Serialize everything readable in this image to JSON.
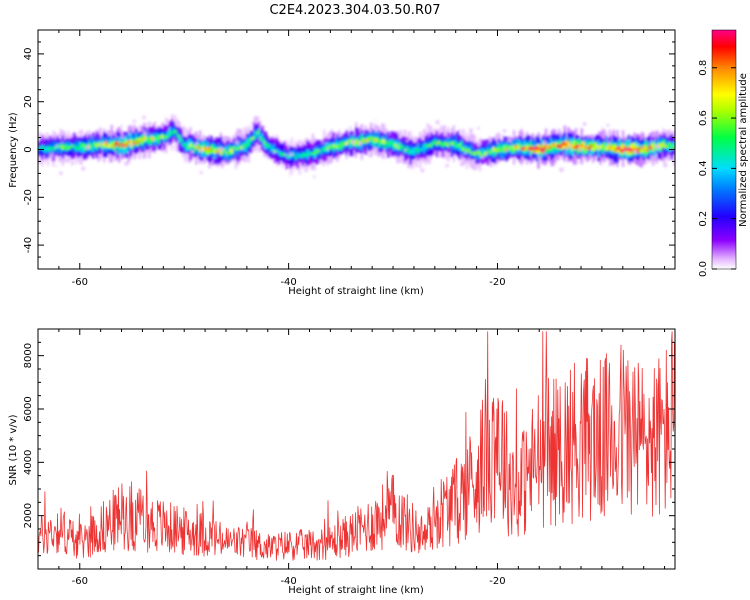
{
  "title": "C2E4.2023.304.03.50.R07",
  "colormap": "rainbow",
  "series_color": "#ee3333",
  "chart_data": [
    {
      "type": "heatmap",
      "xlabel": "Height of straight line (km)",
      "ylabel": "Frequency (Hz)",
      "xlim": [
        -64,
        -3
      ],
      "ylim": [
        -50,
        50
      ],
      "xticks": [
        -60,
        -40,
        -20
      ],
      "yticks": [
        -40,
        -20,
        0,
        20,
        40
      ],
      "colorbar": {
        "label": "Normalized spectral amplitude",
        "range": [
          0.0,
          0.95
        ],
        "ticks": [
          0.0,
          0.2,
          0.4,
          0.6,
          0.8
        ]
      },
      "ridge": {
        "x": [
          -64,
          -62,
          -60,
          -58,
          -56,
          -54,
          -52,
          -51,
          -50,
          -48,
          -46,
          -44,
          -43,
          -42,
          -40,
          -38,
          -36,
          -34,
          -32,
          -30,
          -28,
          -26,
          -24,
          -22,
          -20,
          -18,
          -16,
          -14,
          -12,
          -10,
          -8,
          -6,
          -4,
          -3
        ],
        "freq": [
          0,
          1,
          1,
          2,
          2,
          4,
          5,
          8,
          2,
          0,
          -1,
          2,
          7,
          1,
          -3,
          -2,
          1,
          3,
          4,
          2,
          -1,
          3,
          2,
          -2,
          0,
          1,
          0,
          2,
          1,
          1,
          0,
          0,
          2,
          1
        ],
        "amplitude": [
          0.35,
          0.5,
          0.45,
          0.55,
          0.75,
          0.6,
          0.5,
          0.4,
          0.45,
          0.7,
          0.55,
          0.5,
          0.45,
          0.4,
          0.35,
          0.4,
          0.5,
          0.55,
          0.6,
          0.5,
          0.4,
          0.45,
          0.5,
          0.45,
          0.55,
          0.65,
          0.85,
          0.75,
          0.8,
          0.6,
          0.85,
          0.8,
          0.55,
          0.4
        ]
      }
    },
    {
      "type": "line",
      "xlabel": "Height of straight line (km)",
      "ylabel": "SNR (10 * v/v)",
      "xlim": [
        -64,
        -3
      ],
      "ylim": [
        0,
        9000
      ],
      "xticks": [
        -60,
        -40,
        -20
      ],
      "yticks": [
        2000,
        4000,
        6000,
        8000
      ],
      "envelope": {
        "x": [
          -64,
          -62,
          -60,
          -58,
          -56,
          -54,
          -52,
          -50,
          -48,
          -46,
          -44,
          -42,
          -40,
          -38,
          -36,
          -34,
          -32,
          -30,
          -28,
          -27,
          -26,
          -24,
          -22,
          -21,
          -20,
          -19,
          -18,
          -16,
          -14,
          -12,
          -10,
          -8,
          -6,
          -4,
          -3
        ],
        "y": [
          1200,
          1500,
          1000,
          1500,
          2000,
          1800,
          1600,
          1400,
          1300,
          1000,
          1000,
          800,
          900,
          900,
          1000,
          1300,
          1700,
          2200,
          1500,
          1200,
          2000,
          2500,
          3500,
          4500,
          5200,
          3500,
          3000,
          4200,
          4500,
          5000,
          4800,
          5300,
          4800,
          5000,
          6000
        ]
      }
    }
  ]
}
